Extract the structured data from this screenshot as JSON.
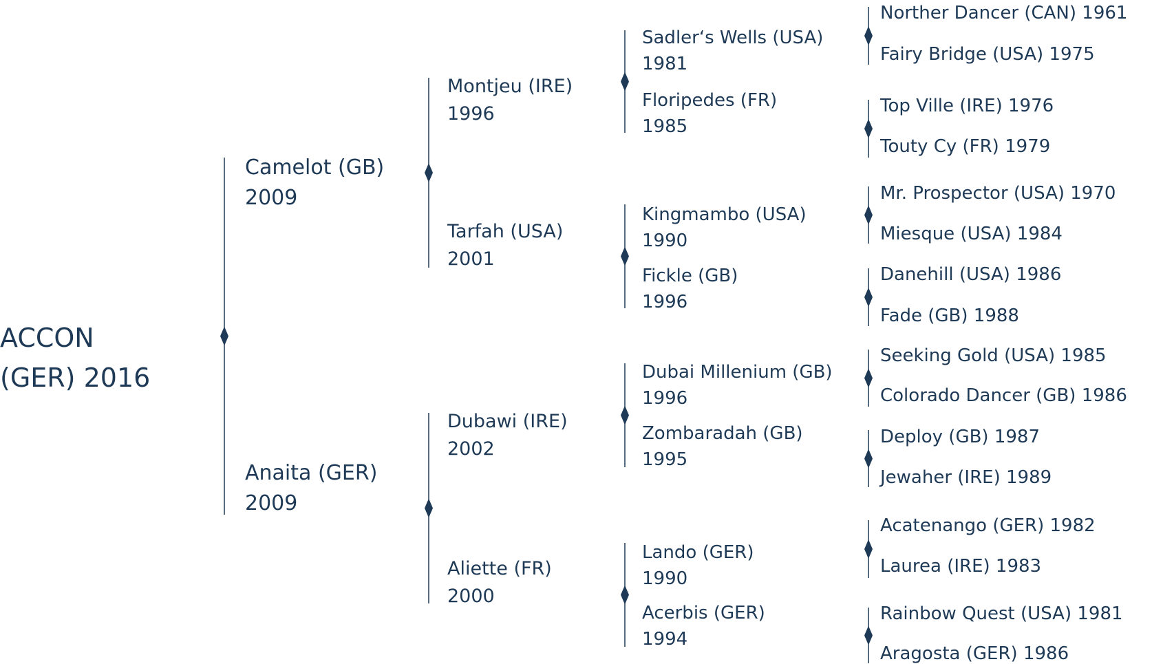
{
  "accent_color": "#1e3a56",
  "root": {
    "name": "ACCON",
    "origin_year": "(GER) 2016"
  },
  "parents": [
    {
      "name": "Camelot (GB)",
      "year": "2009"
    },
    {
      "name": "Anaita (GER)",
      "year": "2009"
    }
  ],
  "grandparents": [
    {
      "name": "Montjeu (IRE)",
      "year": "1996"
    },
    {
      "name": "Tarfah (USA)",
      "year": "2001"
    },
    {
      "name": "Dubawi (IRE)",
      "year": "2002"
    },
    {
      "name": "Aliette (FR)",
      "year": "2000"
    }
  ],
  "great_grandparents": [
    {
      "name": "Sadler‘s Wells (USA)",
      "year": "1981"
    },
    {
      "name": "Floripedes (FR)",
      "year": "1985"
    },
    {
      "name": "Kingmambo (USA)",
      "year": "1990"
    },
    {
      "name": "Fickle (GB)",
      "year": "1996"
    },
    {
      "name": "Dubai Millenium (GB)",
      "year": "1996"
    },
    {
      "name": "Zombaradah (GB)",
      "year": "1995"
    },
    {
      "name": "Lando (GER)",
      "year": "1990"
    },
    {
      "name": "Acerbis (GER)",
      "year": "1994"
    }
  ],
  "great_great_grandparents": [
    "Norther Dancer (CAN) 1961",
    "Fairy Bridge (USA) 1975",
    "Top Ville (IRE) 1976",
    "Touty Cy (FR) 1979",
    "Mr. Prospector (USA) 1970",
    "Miesque (USA) 1984",
    "Danehill (USA) 1986",
    "Fade (GB) 1988",
    "Seeking Gold (USA) 1985",
    "Colorado Dancer (GB) 1986",
    "Deploy (GB) 1987",
    "Jewaher (IRE) 1989",
    "Acatenango (GER) 1982",
    "Laurea (IRE) 1983",
    "Rainbow Quest (USA) 1981",
    "Aragosta (GER) 1986"
  ]
}
